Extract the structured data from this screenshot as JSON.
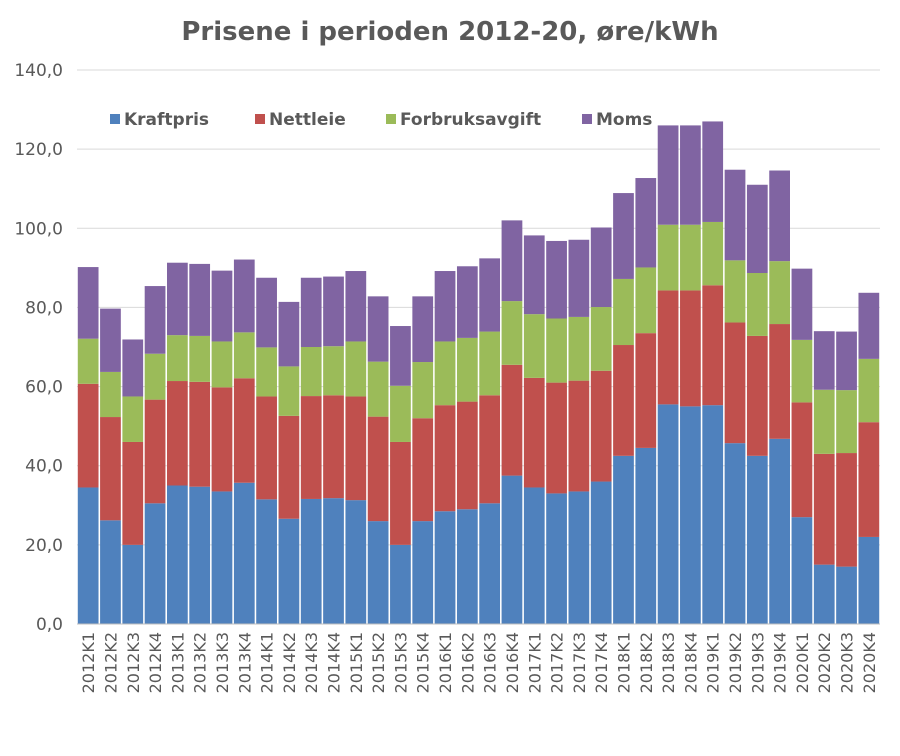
{
  "chart_data": {
    "type": "stacked-bar",
    "title": "Prisene i perioden 2012-20, øre/kWh",
    "xlabel": "",
    "ylabel": "",
    "ylim": [
      0,
      140
    ],
    "yticks": [
      "0,0",
      "20,0",
      "40,0",
      "60,0",
      "80,0",
      "100,0",
      "120,0",
      "140,0"
    ],
    "grid": true,
    "legend_position": "top-left",
    "categories": [
      "2012K1",
      "2012K2",
      "2012K3",
      "2012K4",
      "2013K1",
      "2013K2",
      "2013K3",
      "2013K4",
      "2014K1",
      "2014K2",
      "2014K3",
      "2014K4",
      "2015K1",
      "2015K2",
      "2015K3",
      "2015K4",
      "2016K1",
      "2016K2",
      "2016K3",
      "2016K4",
      "2017K1",
      "2017K2",
      "2017K3",
      "2017K4",
      "2018K1",
      "2018K2",
      "2018K3",
      "2018K4",
      "2019K1",
      "2019K2",
      "2019K3",
      "2019K4",
      "2020K1",
      "2020K2",
      "2020K3",
      "2020K4"
    ],
    "series": [
      {
        "name": "Kraftpris",
        "color": "#4f81bd",
        "values": [
          34.5,
          26.2,
          20.0,
          30.5,
          35.0,
          34.7,
          33.5,
          35.7,
          31.5,
          26.6,
          31.6,
          31.8,
          31.3,
          26.0,
          20.0,
          26.0,
          28.5,
          29.0,
          30.5,
          37.5,
          34.5,
          33.0,
          33.5,
          36.0,
          42.5,
          44.5,
          55.5,
          55.0,
          55.3,
          45.7,
          42.5,
          46.8,
          27.0,
          15.0,
          14.5,
          22.0
        ]
      },
      {
        "name": "Nettleie",
        "color": "#c0504d",
        "values": [
          26.2,
          26.1,
          26.0,
          26.2,
          26.4,
          26.5,
          26.3,
          26.4,
          26.0,
          26.0,
          26.0,
          26.0,
          26.2,
          26.4,
          26.0,
          26.0,
          26.8,
          27.2,
          27.3,
          28.0,
          27.7,
          28.0,
          28.0,
          28.0,
          28.0,
          29.0,
          28.8,
          29.3,
          30.3,
          30.5,
          30.3,
          29.0,
          29.0,
          28.0,
          28.7,
          29.0
        ]
      },
      {
        "name": "Forbruksavgift",
        "color": "#9bbb59",
        "values": [
          11.4,
          11.4,
          11.5,
          11.6,
          11.6,
          11.6,
          11.6,
          11.6,
          12.4,
          12.5,
          12.4,
          12.4,
          13.9,
          13.9,
          14.2,
          14.2,
          16.1,
          16.1,
          16.1,
          16.1,
          16.1,
          16.2,
          16.1,
          16.1,
          16.7,
          16.6,
          16.6,
          16.6,
          16.0,
          15.7,
          15.9,
          15.9,
          15.8,
          16.2,
          15.9,
          16.0
        ]
      },
      {
        "name": "Moms",
        "color": "#8064a2",
        "values": [
          18.1,
          16.0,
          14.4,
          17.1,
          18.3,
          18.2,
          17.9,
          18.4,
          17.6,
          16.3,
          17.5,
          17.6,
          17.8,
          16.5,
          15.1,
          16.6,
          17.8,
          18.1,
          18.5,
          20.4,
          19.9,
          19.6,
          19.5,
          20.1,
          21.7,
          22.6,
          25.1,
          25.1,
          25.4,
          22.9,
          22.3,
          22.9,
          18.0,
          14.8,
          14.8,
          16.7
        ]
      }
    ]
  }
}
